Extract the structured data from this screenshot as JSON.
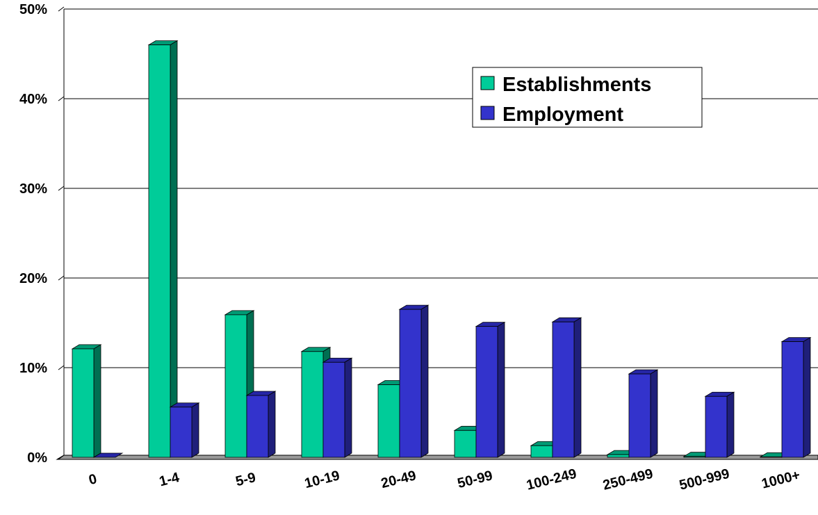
{
  "chart_data": {
    "type": "bar",
    "categories": [
      "0",
      "1-4",
      "5-9",
      "10-19",
      "20-49",
      "50-99",
      "100-249",
      "250-499",
      "500-999",
      "1000+"
    ],
    "series": [
      {
        "name": "Establishments",
        "values": [
          12.1,
          46.0,
          15.9,
          11.8,
          8.1,
          3.0,
          1.3,
          0.3,
          0.1,
          0.05
        ],
        "color": "#00cc99",
        "side": "#006f52",
        "top": "#009a75"
      },
      {
        "name": "Employment",
        "values": [
          0,
          5.6,
          6.9,
          10.6,
          16.5,
          14.6,
          15.1,
          9.3,
          6.8,
          12.9
        ],
        "color": "#3333cc",
        "side": "#1f1f7a",
        "top": "#2626a6"
      }
    ],
    "yticks": [
      "0%",
      "10%",
      "20%",
      "30%",
      "40%",
      "50%"
    ],
    "ylim": [
      0,
      50
    ],
    "grid": true,
    "legend": "top-right"
  }
}
